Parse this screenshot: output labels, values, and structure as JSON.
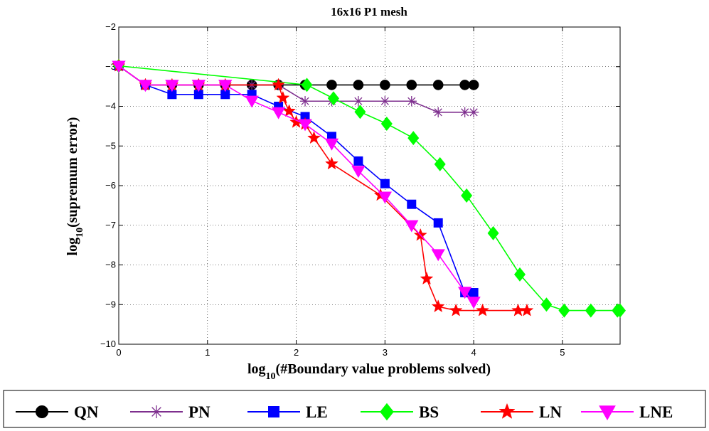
{
  "chart_data": {
    "type": "line",
    "title": "16x16 P1 mesh",
    "xlabel": {
      "base": "log",
      "sub": "10",
      "rest": "(#Boundary value problems solved)"
    },
    "ylabel": {
      "base": "log",
      "sub": "10",
      "rest": "(supremum error)"
    },
    "xlim": [
      0,
      5.65
    ],
    "ylim": [
      -10,
      -2
    ],
    "xticks": [
      0,
      1,
      2,
      3,
      4,
      5
    ],
    "xtick_labels": [
      "0",
      "1",
      "2",
      "3",
      "4",
      "5"
    ],
    "yticks": [
      -10,
      -9,
      -8,
      -7,
      -6,
      -5,
      -4,
      -3,
      -2
    ],
    "ytick_labels": [
      "−10",
      "−9",
      "−8",
      "−7",
      "−6",
      "−5",
      "−4",
      "−3",
      "−2"
    ],
    "grid": true,
    "legend_position": "bottom",
    "series": [
      {
        "name": "QN",
        "color": "#000000",
        "marker": "circle",
        "x": [
          0,
          0.3,
          0.6,
          0.9,
          1.2,
          1.5,
          1.8,
          2.1,
          2.4,
          2.7,
          3.0,
          3.3,
          3.6,
          3.9,
          4.0
        ],
        "y": [
          -2.98,
          -3.46,
          -3.46,
          -3.46,
          -3.46,
          -3.46,
          -3.46,
          -3.46,
          -3.46,
          -3.46,
          -3.46,
          -3.46,
          -3.46,
          -3.46,
          -3.46
        ]
      },
      {
        "name": "PN",
        "color": "#7e2f8e",
        "marker": "asterisk",
        "x": [
          0,
          0.3,
          0.6,
          0.9,
          1.2,
          1.5,
          1.8,
          2.1,
          2.4,
          2.7,
          3.0,
          3.3,
          3.6,
          3.9,
          4.0
        ],
        "y": [
          -2.98,
          -3.46,
          -3.46,
          -3.46,
          -3.46,
          -3.46,
          -3.46,
          -3.87,
          -3.87,
          -3.87,
          -3.87,
          -3.87,
          -4.15,
          -4.15,
          -4.15
        ]
      },
      {
        "name": "LE",
        "color": "#0000ff",
        "marker": "square",
        "x": [
          0,
          0.3,
          0.6,
          0.9,
          1.2,
          1.5,
          1.8,
          2.1,
          2.4,
          2.7,
          3.0,
          3.3,
          3.6,
          3.9,
          4.0
        ],
        "y": [
          -2.98,
          -3.46,
          -3.7,
          -3.7,
          -3.7,
          -3.7,
          -4.0,
          -4.26,
          -4.76,
          -5.38,
          -5.95,
          -6.47,
          -6.94,
          -8.7,
          -8.7
        ]
      },
      {
        "name": "BS",
        "color": "#00ff00",
        "marker": "diamond",
        "x": [
          0,
          2.12,
          2.42,
          2.72,
          3.02,
          3.32,
          3.62,
          3.92,
          4.22,
          4.52,
          4.82,
          5.02,
          5.32,
          5.62,
          5.65
        ],
        "y": [
          -2.98,
          -3.46,
          -3.8,
          -4.14,
          -4.44,
          -4.8,
          -5.46,
          -6.25,
          -7.2,
          -8.24,
          -9.0,
          -9.15,
          -9.15,
          -9.15,
          -9.15
        ]
      },
      {
        "name": "LN",
        "color": "#ff0000",
        "marker": "star",
        "x": [
          0,
          0.3,
          0.6,
          0.9,
          1.2,
          1.8,
          1.85,
          1.92,
          2.0,
          2.1,
          2.2,
          2.4,
          2.95,
          3.4,
          3.47,
          3.6,
          3.8,
          4.1,
          4.5,
          4.6
        ],
        "y": [
          -2.98,
          -3.46,
          -3.46,
          -3.46,
          -3.46,
          -3.46,
          -3.79,
          -4.12,
          -4.4,
          -4.45,
          -4.8,
          -5.45,
          -6.24,
          -7.25,
          -8.35,
          -9.05,
          -9.15,
          -9.15,
          -9.15,
          -9.15
        ]
      },
      {
        "name": "LNE",
        "color": "#ff00ff",
        "marker": "triangle-down",
        "x": [
          0,
          0.3,
          0.6,
          0.9,
          1.2,
          1.5,
          1.8,
          2.1,
          2.4,
          2.7,
          3.0,
          3.3,
          3.6,
          3.9,
          4.0
        ],
        "y": [
          -2.98,
          -3.46,
          -3.46,
          -3.46,
          -3.46,
          -3.86,
          -4.15,
          -4.45,
          -4.94,
          -5.63,
          -6.28,
          -7.0,
          -7.73,
          -8.68,
          -8.93
        ]
      }
    ]
  }
}
